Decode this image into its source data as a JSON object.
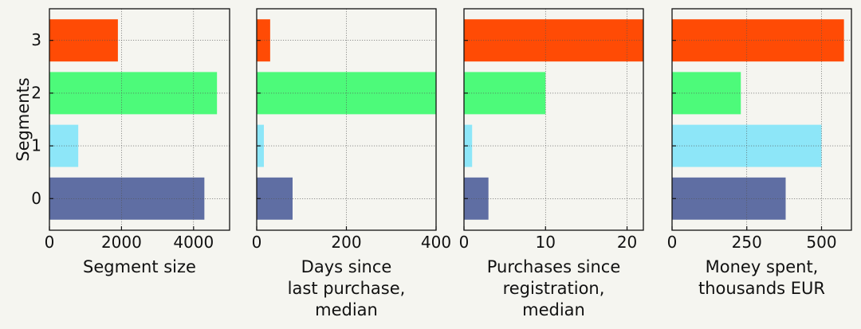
{
  "chart_data": {
    "type": "bar",
    "orientation": "horizontal",
    "ylabel": "Segments",
    "categories": [
      "0",
      "1",
      "2",
      "3"
    ],
    "bar_colors": [
      "#5f6ea3",
      "#8de6f8",
      "#4dfa7a",
      "#ff4b05"
    ],
    "grid": true,
    "panels": [
      {
        "xlabel": [
          "Segment size"
        ],
        "xlim": [
          0,
          5000
        ],
        "xticks": [
          0,
          2000,
          4000
        ],
        "values": [
          4300,
          800,
          4650,
          1900
        ]
      },
      {
        "xlabel": [
          "Days since",
          "last purchase,",
          "median"
        ],
        "xlim": [
          0,
          400
        ],
        "xticks": [
          0,
          200,
          400
        ],
        "values": [
          80,
          16,
          400,
          30
        ]
      },
      {
        "xlabel": [
          "Purchases since",
          "registration,",
          "median"
        ],
        "xlim": [
          0,
          22
        ],
        "xticks": [
          0,
          10,
          20
        ],
        "values": [
          3,
          1,
          10,
          22
        ]
      },
      {
        "xlabel": [
          "Money spent,",
          "thousands EUR"
        ],
        "xlim": [
          0,
          600
        ],
        "xticks": [
          0,
          250,
          500
        ],
        "values": [
          380,
          500,
          230,
          575
        ]
      }
    ]
  }
}
